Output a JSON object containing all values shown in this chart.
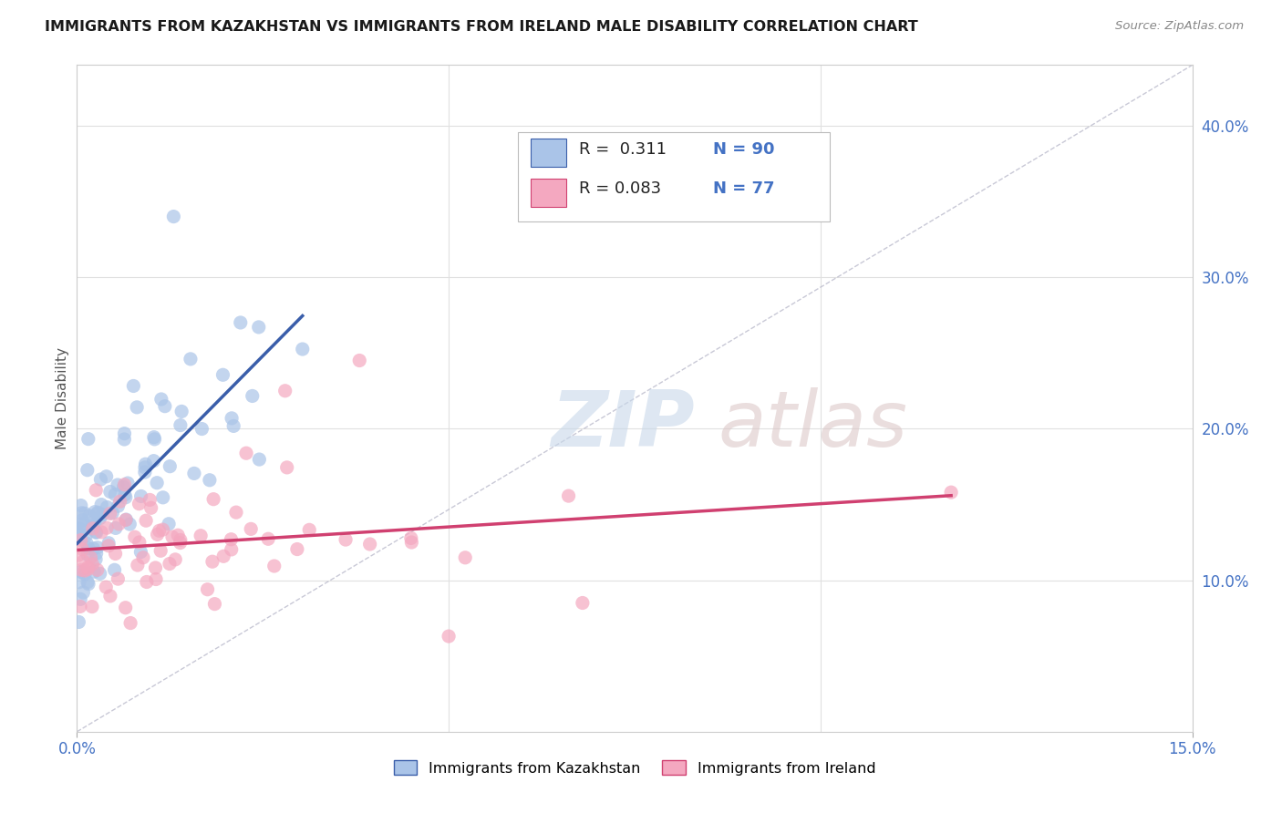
{
  "title": "IMMIGRANTS FROM KAZAKHSTAN VS IMMIGRANTS FROM IRELAND MALE DISABILITY CORRELATION CHART",
  "source": "Source: ZipAtlas.com",
  "ylabel": "Male Disability",
  "xlim": [
    0.0,
    0.15
  ],
  "ylim": [
    0.0,
    0.44
  ],
  "xtick_positions": [
    0.0,
    0.15
  ],
  "xtick_labels": [
    "0.0%",
    "15.0%"
  ],
  "ytick_vals_right": [
    0.1,
    0.2,
    0.3,
    0.4
  ],
  "ytick_labels_right": [
    "10.0%",
    "20.0%",
    "30.0%",
    "40.0%"
  ],
  "R_kazakhstan": 0.311,
  "N_kazakhstan": 90,
  "R_ireland": 0.083,
  "N_ireland": 77,
  "kazakhstan_fill": "#aac4e8",
  "ireland_fill": "#f4a8c0",
  "kazakhstan_line_color": "#3a5eaa",
  "ireland_line_color": "#d04070",
  "background_color": "#ffffff",
  "grid_color": "#e0e0e0",
  "diag_color": "#bbbbcc",
  "title_color": "#1a1a1a",
  "axis_label_color": "#555555",
  "tick_color": "#4472C4",
  "legend_text_color_label": "#222222",
  "legend_value_color": "#4472C4",
  "source_color": "#888888"
}
